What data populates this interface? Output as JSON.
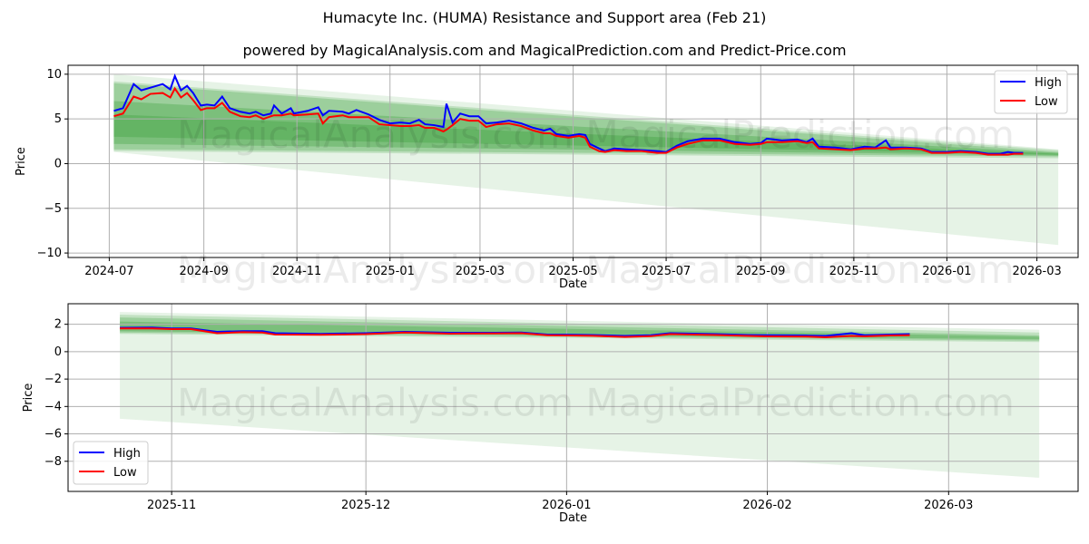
{
  "title": "Humacyte Inc. (HUMA) Resistance and Support area (Feb 21)",
  "subtitle": "powered by MagicalAnalysis.com and MagicalPrediction.com and Predict-Price.com",
  "watermark": "MagicalAnalysis.com     MagicalPrediction.com",
  "colors": {
    "high": "#0000ff",
    "low": "#ff0000",
    "band": "#2e9b2e"
  },
  "chart_data": [
    {
      "type": "line",
      "xlabel": "Date",
      "ylabel": "Price",
      "ylim": [
        -10.5,
        11
      ],
      "xlim": [
        "2024-06-04",
        "2026-03-28"
      ],
      "yticks": [
        10,
        5,
        0,
        -5,
        -10
      ],
      "xticks": [
        "2024-07",
        "2024-09",
        "2024-11",
        "2025-01",
        "2025-03",
        "2025-05",
        "2025-07",
        "2025-09",
        "2025-11",
        "2026-01",
        "2026-03"
      ],
      "legend": {
        "position": "top-right",
        "entries": [
          "High",
          "Low"
        ]
      },
      "grid": true,
      "band_range": [
        "2024-07-04",
        "2026-03-15"
      ],
      "bands": [
        [
          10,
          1.3,
          1.6,
          -9.1,
          0.12
        ],
        [
          9.2,
          1.4,
          1.5,
          0.6,
          0.2
        ],
        [
          9,
          1.6,
          1.3,
          0.8,
          0.25
        ],
        [
          7,
          2.2,
          1.2,
          0.9,
          0.3
        ],
        [
          5.5,
          3.0,
          1.1,
          1.0,
          0.3
        ]
      ],
      "series": [
        [
          "2024-07-04",
          5.9,
          5.3
        ],
        [
          "2024-07-10",
          6.2,
          5.6
        ],
        [
          "2024-07-17",
          8.9,
          7.5
        ],
        [
          "2024-07-22",
          8.2,
          7.2
        ],
        [
          "2024-07-28",
          8.5,
          7.8
        ],
        [
          "2024-08-05",
          8.9,
          7.9
        ],
        [
          "2024-08-10",
          8.3,
          7.4
        ],
        [
          "2024-08-13",
          9.8,
          8.4
        ],
        [
          "2024-08-17",
          8.2,
          7.4
        ],
        [
          "2024-08-21",
          8.7,
          7.9
        ],
        [
          "2024-08-25",
          7.9,
          7.1
        ],
        [
          "2024-08-30",
          6.5,
          6.0
        ],
        [
          "2024-09-03",
          6.6,
          6.2
        ],
        [
          "2024-09-08",
          6.5,
          6.2
        ],
        [
          "2024-09-13",
          7.5,
          6.8
        ],
        [
          "2024-09-18",
          6.2,
          5.8
        ],
        [
          "2024-09-25",
          5.8,
          5.3
        ],
        [
          "2024-10-01",
          5.6,
          5.2
        ],
        [
          "2024-10-05",
          5.8,
          5.4
        ],
        [
          "2024-10-10",
          5.4,
          5.0
        ],
        [
          "2024-10-15",
          5.6,
          5.3
        ],
        [
          "2024-10-17",
          6.5,
          5.4
        ],
        [
          "2024-10-22",
          5.6,
          5.4
        ],
        [
          "2024-10-28",
          6.2,
          5.6
        ],
        [
          "2024-10-30",
          5.6,
          5.4
        ],
        [
          "2024-11-08",
          5.9,
          5.5
        ],
        [
          "2024-11-15",
          6.3,
          5.6
        ],
        [
          "2024-11-18",
          5.4,
          4.5
        ],
        [
          "2024-11-22",
          5.9,
          5.2
        ],
        [
          "2024-12-01",
          5.8,
          5.4
        ],
        [
          "2024-12-05",
          5.6,
          5.2
        ],
        [
          "2024-12-10",
          6.0,
          5.2
        ],
        [
          "2024-12-18",
          5.5,
          5.2
        ],
        [
          "2024-12-25",
          4.9,
          4.4
        ],
        [
          "2025-01-01",
          4.5,
          4.3
        ],
        [
          "2025-01-08",
          4.6,
          4.2
        ],
        [
          "2025-01-14",
          4.5,
          4.2
        ],
        [
          "2025-01-20",
          4.9,
          4.3
        ],
        [
          "2025-01-24",
          4.4,
          4.0
        ],
        [
          "2025-01-30",
          4.3,
          4.0
        ],
        [
          "2025-02-05",
          4.1,
          3.6
        ],
        [
          "2025-02-07",
          6.7,
          3.8
        ],
        [
          "2025-02-11",
          4.6,
          4.3
        ],
        [
          "2025-02-16",
          5.6,
          5.0
        ],
        [
          "2025-02-22",
          5.3,
          4.8
        ],
        [
          "2025-02-28",
          5.3,
          4.8
        ],
        [
          "2025-03-05",
          4.5,
          4.1
        ],
        [
          "2025-03-12",
          4.6,
          4.4
        ],
        [
          "2025-03-20",
          4.8,
          4.5
        ],
        [
          "2025-03-28",
          4.5,
          4.2
        ],
        [
          "2025-04-05",
          4.0,
          3.7
        ],
        [
          "2025-04-12",
          3.7,
          3.4
        ],
        [
          "2025-04-16",
          3.9,
          3.4
        ],
        [
          "2025-04-20",
          3.3,
          3.1
        ],
        [
          "2025-04-28",
          3.1,
          2.9
        ],
        [
          "2025-05-05",
          3.3,
          3.1
        ],
        [
          "2025-05-09",
          3.2,
          2.9
        ],
        [
          "2025-05-12",
          2.2,
          1.9
        ],
        [
          "2025-05-18",
          1.7,
          1.4
        ],
        [
          "2025-05-22",
          1.4,
          1.3
        ],
        [
          "2025-05-28",
          1.7,
          1.5
        ],
        [
          "2025-06-05",
          1.6,
          1.4
        ],
        [
          "2025-06-15",
          1.5,
          1.4
        ],
        [
          "2025-06-25",
          1.4,
          1.2
        ],
        [
          "2025-07-01",
          1.3,
          1.2
        ],
        [
          "2025-07-08",
          2.0,
          1.8
        ],
        [
          "2025-07-15",
          2.5,
          2.2
        ],
        [
          "2025-07-25",
          2.8,
          2.6
        ],
        [
          "2025-08-05",
          2.8,
          2.6
        ],
        [
          "2025-08-15",
          2.4,
          2.2
        ],
        [
          "2025-08-25",
          2.2,
          2.1
        ],
        [
          "2025-09-01",
          2.3,
          2.2
        ],
        [
          "2025-09-05",
          2.8,
          2.4
        ],
        [
          "2025-09-15",
          2.6,
          2.4
        ],
        [
          "2025-09-25",
          2.7,
          2.5
        ],
        [
          "2025-10-01",
          2.4,
          2.3
        ],
        [
          "2025-10-05",
          2.8,
          2.4
        ],
        [
          "2025-10-09",
          1.9,
          1.7
        ],
        [
          "2025-10-20",
          1.8,
          1.6
        ],
        [
          "2025-10-30",
          1.6,
          1.5
        ],
        [
          "2025-11-08",
          1.9,
          1.7
        ],
        [
          "2025-11-15",
          1.8,
          1.7
        ],
        [
          "2025-11-22",
          2.6,
          1.8
        ],
        [
          "2025-11-25",
          1.8,
          1.6
        ],
        [
          "2025-12-05",
          1.8,
          1.7
        ],
        [
          "2025-12-15",
          1.7,
          1.6
        ],
        [
          "2025-12-22",
          1.3,
          1.2
        ],
        [
          "2026-01-01",
          1.3,
          1.2
        ],
        [
          "2026-01-10",
          1.4,
          1.3
        ],
        [
          "2026-01-20",
          1.3,
          1.2
        ],
        [
          "2026-01-28",
          1.1,
          1.0
        ],
        [
          "2026-02-05",
          1.1,
          1.0
        ],
        [
          "2026-02-10",
          1.3,
          1.0
        ],
        [
          "2026-02-14",
          1.2,
          1.1
        ],
        [
          "2026-02-20",
          1.2,
          1.1
        ]
      ]
    },
    {
      "type": "line",
      "xlabel": "Date",
      "ylabel": "Price",
      "ylim": [
        -10.2,
        3.5
      ],
      "xlim": [
        "2025-10-16",
        "2026-03-21"
      ],
      "yticks": [
        2,
        0,
        -2,
        -4,
        -6,
        -8
      ],
      "xticks": [
        "2025-11",
        "2025-12",
        "2026-01",
        "2026-02",
        "2026-03"
      ],
      "legend": {
        "position": "bottom-left",
        "entries": [
          "High",
          "Low"
        ]
      },
      "grid": true,
      "band_range": [
        "2025-10-24",
        "2026-03-15"
      ],
      "bands": [
        [
          2.9,
          -4.9,
          1.6,
          -9.2,
          0.12
        ],
        [
          2.7,
          1.3,
          1.4,
          0.7,
          0.2
        ],
        [
          2.5,
          1.4,
          1.2,
          0.8,
          0.25
        ],
        [
          2.2,
          1.5,
          1.1,
          0.9,
          0.3
        ]
      ],
      "series": [
        [
          "2025-10-24",
          1.75,
          1.7
        ],
        [
          "2025-10-29",
          1.76,
          1.7
        ],
        [
          "2025-11-01",
          1.7,
          1.65
        ],
        [
          "2025-11-04",
          1.7,
          1.65
        ],
        [
          "2025-11-08",
          1.45,
          1.35
        ],
        [
          "2025-11-12",
          1.5,
          1.42
        ],
        [
          "2025-11-15",
          1.5,
          1.4
        ],
        [
          "2025-11-17",
          1.35,
          1.25
        ],
        [
          "2025-11-24",
          1.3,
          1.23
        ],
        [
          "2025-12-01",
          1.35,
          1.28
        ],
        [
          "2025-12-07",
          1.45,
          1.4
        ],
        [
          "2025-12-14",
          1.38,
          1.32
        ],
        [
          "2025-12-21",
          1.38,
          1.33
        ],
        [
          "2025-12-25",
          1.4,
          1.35
        ],
        [
          "2025-12-29",
          1.25,
          1.2
        ],
        [
          "2026-01-05",
          1.22,
          1.16
        ],
        [
          "2026-01-10",
          1.15,
          1.08
        ],
        [
          "2026-01-14",
          1.2,
          1.13
        ],
        [
          "2026-01-17",
          1.35,
          1.28
        ],
        [
          "2026-01-24",
          1.28,
          1.22
        ],
        [
          "2026-01-29",
          1.22,
          1.15
        ],
        [
          "2026-02-01",
          1.2,
          1.12
        ],
        [
          "2026-02-07",
          1.18,
          1.1
        ],
        [
          "2026-02-10",
          1.15,
          1.05
        ],
        [
          "2026-02-14",
          1.35,
          1.15
        ],
        [
          "2026-02-16",
          1.2,
          1.12
        ],
        [
          "2026-02-20",
          1.25,
          1.18
        ],
        [
          "2026-02-23",
          1.28,
          1.2
        ]
      ]
    }
  ]
}
